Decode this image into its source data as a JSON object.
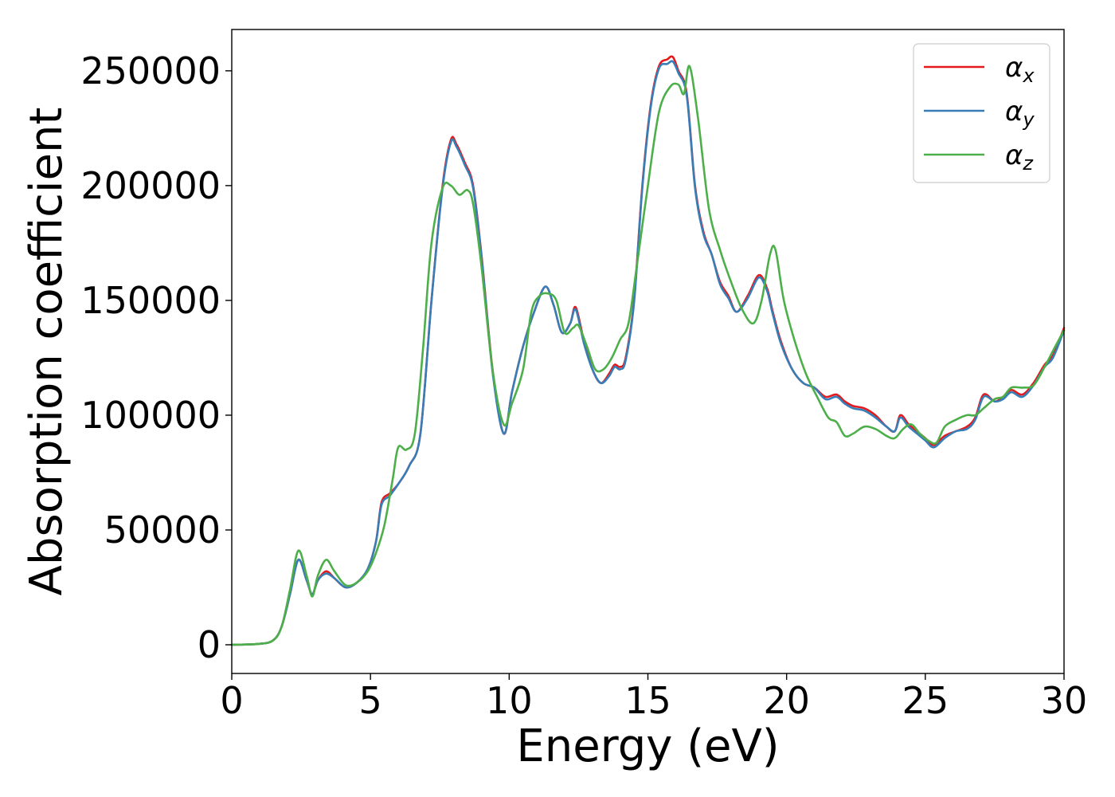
{
  "chart_data": {
    "type": "line",
    "xlabel": "Energy (eV)",
    "ylabel": "Absorption coefficient",
    "xlim": [
      0,
      30
    ],
    "ylim": [
      -12500,
      268000
    ],
    "x_ticks": [
      "0",
      "5",
      "10",
      "15",
      "20",
      "25",
      "30"
    ],
    "y_ticks": [
      "0",
      "50000",
      "100000",
      "150000",
      "200000",
      "250000"
    ],
    "grid": false,
    "legend_position": "top-right",
    "series": [
      {
        "name": "α_x",
        "legend_base": "α",
        "legend_sub": "x",
        "color": "#e41a1c",
        "x": [
          0,
          1.0,
          1.5,
          1.8,
          2.1,
          2.4,
          2.7,
          2.9,
          3.1,
          3.4,
          3.7,
          4.1,
          4.5,
          4.9,
          5.2,
          5.4,
          5.7,
          6.0,
          6.4,
          6.8,
          7.2,
          7.6,
          7.9,
          8.1,
          8.4,
          8.7,
          9.0,
          9.4,
          9.8,
          10.1,
          10.5,
          10.9,
          11.3,
          11.6,
          11.9,
          12.2,
          12.4,
          12.7,
          13.0,
          13.3,
          13.6,
          13.8,
          14.0,
          14.2,
          14.5,
          14.8,
          15.1,
          15.4,
          15.7,
          15.9,
          16.1,
          16.4,
          16.7,
          17.0,
          17.3,
          17.6,
          17.9,
          18.2,
          18.6,
          19.0,
          19.3,
          19.5,
          19.8,
          20.2,
          20.6,
          21.0,
          21.4,
          21.8,
          22.1,
          22.4,
          22.8,
          23.2,
          23.6,
          23.9,
          24.1,
          24.4,
          24.7,
          25.0,
          25.3,
          25.7,
          26.1,
          26.5,
          26.8,
          27.1,
          27.5,
          27.8,
          28.1,
          28.5,
          28.9,
          29.3,
          29.6,
          30.0
        ],
        "y": [
          0,
          400,
          2000,
          8000,
          22000,
          37000,
          28000,
          22000,
          28000,
          32000,
          29000,
          25000,
          27000,
          33000,
          45000,
          62000,
          66000,
          70000,
          78000,
          92000,
          150000,
          200000,
          220000,
          218000,
          210000,
          200000,
          170000,
          120000,
          92000,
          110000,
          130000,
          145000,
          156000,
          148000,
          136000,
          140000,
          147000,
          132000,
          120000,
          114000,
          118000,
          122000,
          121000,
          125000,
          150000,
          200000,
          235000,
          252000,
          255000,
          256000,
          250000,
          240000,
          200000,
          180000,
          170000,
          158000,
          152000,
          145000,
          152000,
          161000,
          155000,
          145000,
          132000,
          120000,
          114000,
          112000,
          108000,
          109000,
          106000,
          104000,
          103000,
          100000,
          95000,
          93000,
          100000,
          96000,
          93000,
          90000,
          87000,
          91000,
          93000,
          95000,
          99000,
          109000,
          106000,
          108000,
          111000,
          109000,
          114000,
          122000,
          126000,
          138000
        ]
      },
      {
        "name": "α_y",
        "legend_base": "α",
        "legend_sub": "y",
        "color": "#377eb8",
        "x": [
          0,
          1.0,
          1.5,
          1.8,
          2.1,
          2.4,
          2.7,
          2.9,
          3.1,
          3.4,
          3.7,
          4.1,
          4.5,
          4.9,
          5.2,
          5.4,
          5.7,
          6.0,
          6.4,
          6.8,
          7.2,
          7.6,
          7.9,
          8.1,
          8.4,
          8.7,
          9.0,
          9.4,
          9.8,
          10.1,
          10.5,
          10.9,
          11.3,
          11.6,
          11.9,
          12.2,
          12.4,
          12.7,
          13.0,
          13.3,
          13.6,
          13.8,
          14.0,
          14.2,
          14.5,
          14.8,
          15.1,
          15.4,
          15.7,
          15.9,
          16.1,
          16.4,
          16.7,
          17.0,
          17.3,
          17.6,
          17.9,
          18.2,
          18.6,
          19.0,
          19.3,
          19.5,
          19.8,
          20.2,
          20.6,
          21.0,
          21.4,
          21.8,
          22.1,
          22.4,
          22.8,
          23.2,
          23.6,
          23.9,
          24.1,
          24.4,
          24.7,
          25.0,
          25.3,
          25.7,
          26.1,
          26.5,
          26.8,
          27.1,
          27.5,
          27.8,
          28.1,
          28.5,
          28.9,
          29.3,
          29.6,
          30.0
        ],
        "y": [
          0,
          400,
          2000,
          8000,
          22000,
          37000,
          28000,
          22000,
          28000,
          31000,
          29000,
          25000,
          27000,
          33000,
          45000,
          61000,
          65000,
          70000,
          78000,
          92000,
          150000,
          199000,
          219000,
          217000,
          209000,
          199000,
          169000,
          119000,
          92000,
          110000,
          130000,
          145000,
          156000,
          148000,
          136000,
          140000,
          146000,
          131000,
          120000,
          114000,
          117000,
          121000,
          120000,
          124000,
          149000,
          199000,
          234000,
          251000,
          253000,
          254000,
          249000,
          239000,
          199000,
          179000,
          170000,
          157000,
          151000,
          145000,
          151000,
          160000,
          154000,
          144000,
          131000,
          120000,
          114000,
          112000,
          107000,
          108000,
          105000,
          103000,
          102000,
          99000,
          95000,
          93000,
          99000,
          95000,
          92000,
          89000,
          86000,
          90000,
          93000,
          94000,
          98000,
          108000,
          106000,
          107000,
          110000,
          108000,
          113000,
          121000,
          125000,
          137000
        ]
      },
      {
        "name": "α_z",
        "legend_base": "α",
        "legend_sub": "z",
        "color": "#4daf4a",
        "x": [
          0,
          1.0,
          1.5,
          1.8,
          2.1,
          2.4,
          2.7,
          2.9,
          3.1,
          3.4,
          3.7,
          4.1,
          4.5,
          4.9,
          5.2,
          5.5,
          5.8,
          6.0,
          6.3,
          6.6,
          6.9,
          7.2,
          7.6,
          7.9,
          8.2,
          8.5,
          8.7,
          9.0,
          9.4,
          9.8,
          10.1,
          10.5,
          10.8,
          11.1,
          11.4,
          11.7,
          12.0,
          12.3,
          12.5,
          12.8,
          13.1,
          13.4,
          13.7,
          14.0,
          14.3,
          14.6,
          15.0,
          15.4,
          15.8,
          16.1,
          16.3,
          16.5,
          16.8,
          17.2,
          17.6,
          18.0,
          18.4,
          18.8,
          19.1,
          19.4,
          19.6,
          19.9,
          20.3,
          20.7,
          21.1,
          21.5,
          21.8,
          22.1,
          22.4,
          22.8,
          23.2,
          23.6,
          23.9,
          24.2,
          24.5,
          24.8,
          25.1,
          25.4,
          25.7,
          26.1,
          26.5,
          26.8,
          27.1,
          27.5,
          27.8,
          28.1,
          28.5,
          28.9,
          29.3,
          29.6,
          30.0
        ],
        "y": [
          0,
          400,
          2000,
          8000,
          24000,
          41000,
          30000,
          21000,
          30000,
          37000,
          32000,
          26000,
          27000,
          32000,
          40000,
          52000,
          72000,
          86000,
          85000,
          92000,
          130000,
          175000,
          199000,
          200000,
          196000,
          198000,
          192000,
          165000,
          120000,
          96000,
          105000,
          120000,
          145000,
          152000,
          153000,
          150000,
          136000,
          138000,
          139000,
          130000,
          120000,
          120000,
          125000,
          133000,
          140000,
          165000,
          200000,
          232000,
          243000,
          244000,
          240000,
          252000,
          230000,
          190000,
          172000,
          158000,
          146000,
          140000,
          150000,
          170000,
          172000,
          150000,
          132000,
          118000,
          108000,
          99000,
          97000,
          91000,
          92000,
          95000,
          94000,
          91000,
          90000,
          94000,
          96000,
          92000,
          89000,
          88000,
          95000,
          98000,
          100000,
          100000,
          103000,
          107000,
          108000,
          112000,
          112000,
          113000,
          121000,
          128000,
          137000
        ]
      }
    ]
  }
}
